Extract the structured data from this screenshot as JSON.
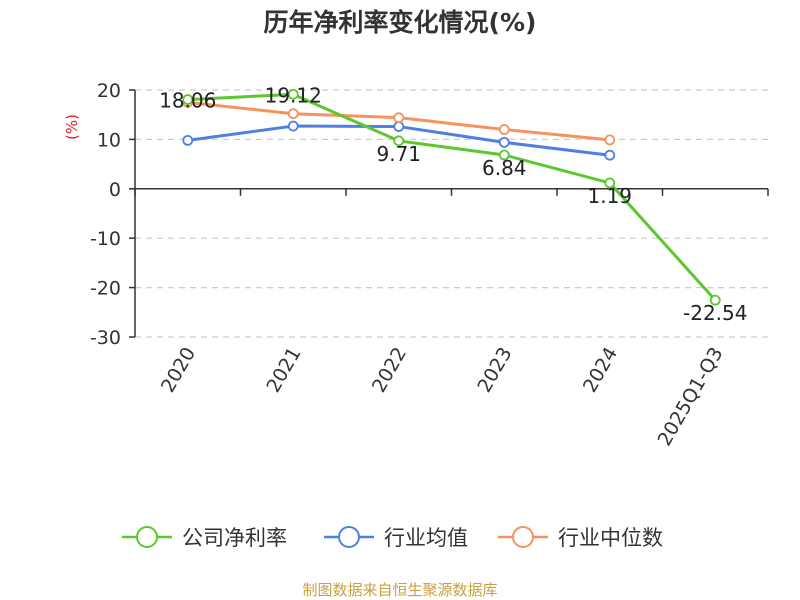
{
  "chart_data": {
    "type": "line",
    "title": "历年净利率变化情况(%)",
    "ylabel": "(%)",
    "categories": [
      "2020",
      "2021",
      "2022",
      "2023",
      "2024",
      "2025Q1-Q3"
    ],
    "ylim": [
      -30,
      20
    ],
    "yticks": [
      20,
      10,
      0,
      -10,
      -20,
      -30
    ],
    "grid": true,
    "legend_position": "bottom",
    "series": [
      {
        "name": "公司净利率",
        "color": "#5cc72e",
        "values": [
          18.06,
          19.12,
          9.71,
          6.84,
          1.19,
          -22.54
        ],
        "labels": [
          "18.06",
          "19.12",
          "9.71",
          "6.84",
          "1.19",
          "-22.54"
        ]
      },
      {
        "name": "行业均值",
        "color": "#4f7fe0",
        "values": [
          9.8,
          12.7,
          12.6,
          9.4,
          6.8,
          null
        ]
      },
      {
        "name": "行业中位数",
        "color": "#f5925e",
        "values": [
          17.5,
          15.2,
          14.4,
          12.0,
          9.9,
          null
        ]
      }
    ]
  },
  "source": "制图数据来自恒生聚源数据库",
  "colors": {
    "axis_label": "#e02020",
    "source": "#c8a040",
    "grid": "#cccccc"
  }
}
